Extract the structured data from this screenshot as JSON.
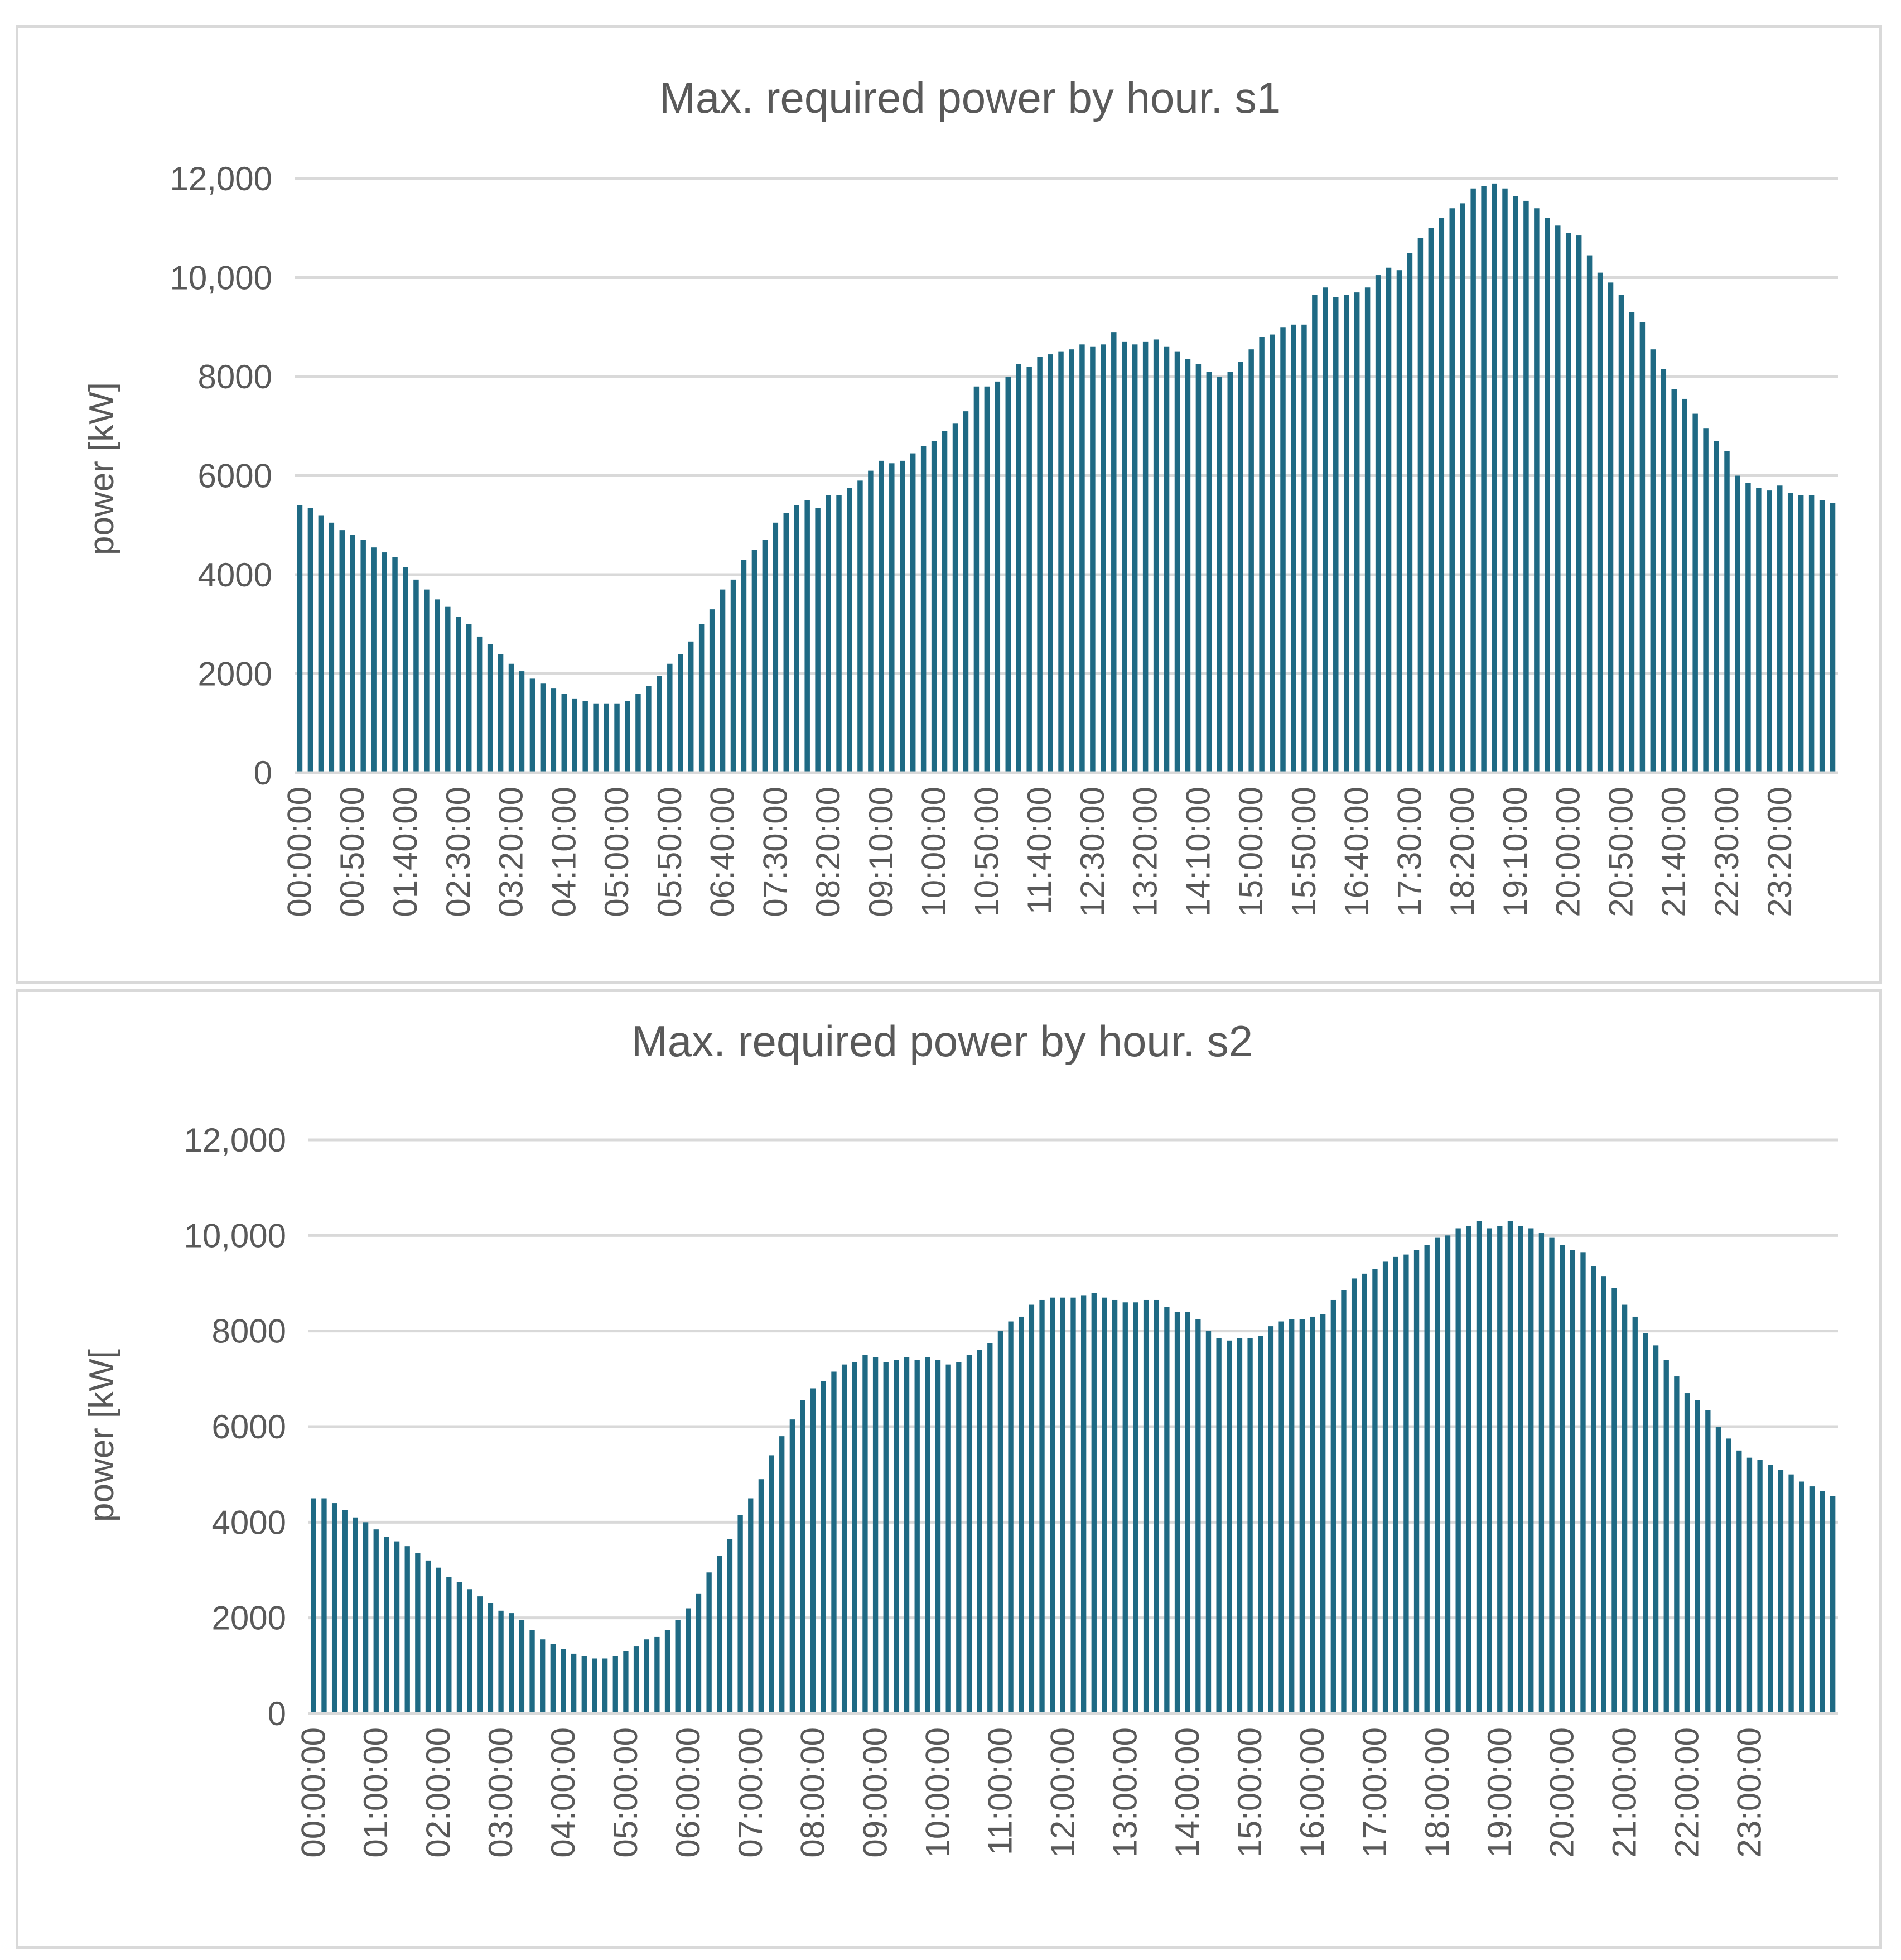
{
  "colors": {
    "bar": "#1F6A84",
    "grid": "#d9d9d9",
    "text": "#595959"
  },
  "chart_data": [
    {
      "type": "bar",
      "title": "Max. required power by hour. s1",
      "xlabel": "",
      "ylabel": "power [kW]",
      "ylim": [
        0,
        12000
      ],
      "y_ticks": [
        0,
        2000,
        4000,
        6000,
        8000,
        10000,
        12000
      ],
      "y_tick_labels": [
        "0",
        "2000",
        "4000",
        "6000",
        "8000",
        "10,000",
        "12,000"
      ],
      "x_interval_minutes": 10,
      "x_tick_every": 5,
      "x_tick_labels": [
        "00:00:00",
        "00:50:00",
        "01:40:00",
        "02:30:00",
        "03:20:00",
        "04:10:00",
        "05:00:00",
        "05:50:00",
        "06:40:00",
        "07:30:00",
        "08:20:00",
        "09:10:00",
        "10:00:00",
        "10:50:00",
        "11:40:00",
        "12:30:00",
        "13:20:00",
        "14:10:00",
        "15:00:00",
        "15:50:00",
        "16:40:00",
        "17:30:00",
        "18:20:00",
        "19:10:00",
        "20:00:00",
        "20:50:00",
        "21:40:00",
        "22:30:00",
        "23:20:00"
      ],
      "values": [
        5400,
        5350,
        5200,
        5050,
        4900,
        4800,
        4700,
        4550,
        4450,
        4350,
        4150,
        3900,
        3700,
        3500,
        3350,
        3150,
        3000,
        2750,
        2600,
        2400,
        2200,
        2050,
        1900,
        1800,
        1700,
        1600,
        1500,
        1450,
        1400,
        1400,
        1400,
        1450,
        1600,
        1750,
        1950,
        2200,
        2400,
        2650,
        3000,
        3300,
        3700,
        3900,
        4300,
        4500,
        4700,
        5050,
        5250,
        5400,
        5500,
        5350,
        5600,
        5600,
        5750,
        5900,
        6100,
        6300,
        6250,
        6300,
        6450,
        6600,
        6700,
        6900,
        7050,
        7300,
        7800,
        7800,
        7900,
        8000,
        8250,
        8200,
        8400,
        8450,
        8500,
        8550,
        8650,
        8600,
        8650,
        8900,
        8700,
        8650,
        8700,
        8750,
        8600,
        8500,
        8350,
        8250,
        8100,
        8000,
        8100,
        8300,
        8550,
        8800,
        8850,
        9000,
        9050,
        9050,
        9650,
        9800,
        9600,
        9650,
        9700,
        9800,
        10050,
        10200,
        10150,
        10500,
        10800,
        11000,
        11200,
        11400,
        11500,
        11800,
        11850,
        11900,
        11800,
        11650,
        11550,
        11400,
        11200,
        11050,
        10900,
        10850,
        10450,
        10100,
        9900,
        9650,
        9300,
        9100,
        8550,
        8150,
        7750,
        7550,
        7250,
        6950,
        6700,
        6500,
        6000,
        5850,
        5750,
        5700,
        5800,
        5650,
        5600,
        5600,
        5500,
        5450
      ]
    },
    {
      "type": "bar",
      "title": "Max. required power by hour. s2",
      "xlabel": "",
      "ylabel": "power [kW[",
      "ylim": [
        0,
        12000
      ],
      "y_ticks": [
        0,
        2000,
        4000,
        6000,
        8000,
        10000,
        12000
      ],
      "y_tick_labels": [
        "0",
        "2000",
        "4000",
        "6000",
        "8000",
        "10,000",
        "12,000"
      ],
      "x_interval_minutes": 10,
      "x_tick_every": 6,
      "x_tick_labels": [
        "00:00:00",
        "01:00:00",
        "02:00:00",
        "03:00:00",
        "04:00:00",
        "05:00:00",
        "06:00:00",
        "07:00:00",
        "08:00:00",
        "09:00:00",
        "10:00:00",
        "11:00:00",
        "12:00:00",
        "13:00:00",
        "14:00:00",
        "15:00:00",
        "16:00:00",
        "17:00:00",
        "18:00:00",
        "19:00:00",
        "20:00:00",
        "21:00:00",
        "22:00:00",
        "23:00:00"
      ],
      "values": [
        4500,
        4500,
        4400,
        4250,
        4100,
        4000,
        3850,
        3700,
        3600,
        3500,
        3350,
        3200,
        3050,
        2850,
        2750,
        2600,
        2450,
        2300,
        2150,
        2100,
        1950,
        1750,
        1550,
        1450,
        1350,
        1250,
        1200,
        1150,
        1150,
        1200,
        1300,
        1400,
        1550,
        1600,
        1750,
        1950,
        2200,
        2500,
        2950,
        3300,
        3650,
        4150,
        4500,
        4900,
        5400,
        5800,
        6150,
        6550,
        6800,
        6950,
        7150,
        7300,
        7350,
        7500,
        7450,
        7350,
        7400,
        7450,
        7400,
        7450,
        7400,
        7300,
        7350,
        7500,
        7600,
        7750,
        8000,
        8200,
        8300,
        8550,
        8650,
        8700,
        8700,
        8700,
        8750,
        8800,
        8700,
        8650,
        8600,
        8600,
        8650,
        8650,
        8500,
        8400,
        8400,
        8250,
        8000,
        7850,
        7800,
        7850,
        7850,
        7900,
        8100,
        8200,
        8250,
        8250,
        8300,
        8350,
        8650,
        8850,
        9100,
        9200,
        9300,
        9450,
        9550,
        9600,
        9700,
        9800,
        9950,
        10000,
        10150,
        10200,
        10300,
        10150,
        10200,
        10300,
        10200,
        10150,
        10050,
        9950,
        9800,
        9700,
        9650,
        9350,
        9150,
        8900,
        8550,
        8300,
        7950,
        7700,
        7400,
        7050,
        6700,
        6550,
        6350,
        6000,
        5750,
        5500,
        5350,
        5300,
        5200,
        5100,
        5000,
        4850,
        4750,
        4650,
        4550
      ]
    }
  ]
}
